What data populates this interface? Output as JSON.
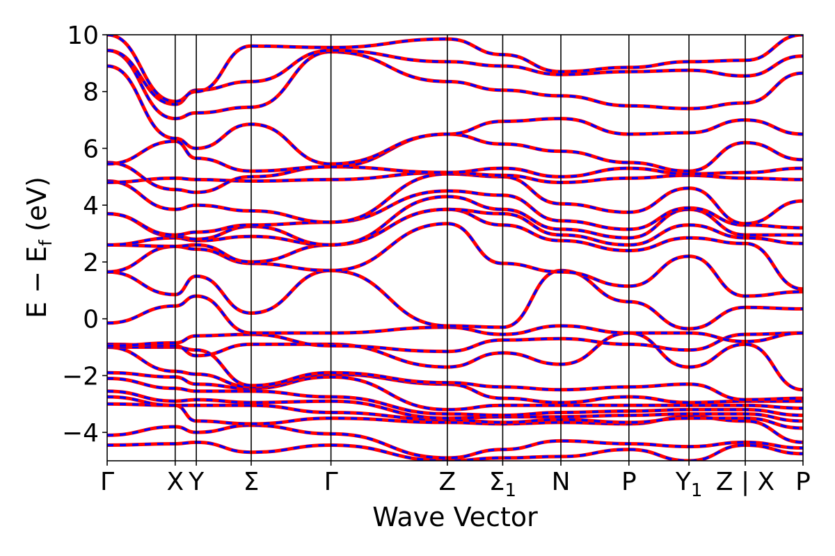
{
  "chart_data": {
    "type": "line",
    "title": "",
    "xlabel": "Wave Vector",
    "ylabel": "E − E_f (eV)",
    "ylabel_main": "E − E",
    "ylabel_sub": "f",
    "ylabel_tail": " (eV)",
    "ylim": [
      -5,
      10
    ],
    "yticks": [
      -4,
      -2,
      0,
      2,
      4,
      6,
      8,
      10
    ],
    "ytick_labels": [
      "−4",
      "−2",
      "0",
      "2",
      "4",
      "6",
      "8",
      "10"
    ],
    "xlim": [
      0,
      12.3
    ],
    "grid": false,
    "legend": "none",
    "colors": {
      "solid": "#ff0000",
      "dashed": "#0000ff"
    },
    "high_symmetry_points": [
      {
        "x": 0.0,
        "label": "Γ",
        "sub": ""
      },
      {
        "x": 1.45,
        "label": "X",
        "sub": ""
      },
      {
        "x": 1.9,
        "label": "Y",
        "sub": ""
      },
      {
        "x": 3.07,
        "label": "Σ",
        "sub": ""
      },
      {
        "x": 4.77,
        "label": "Γ",
        "sub": ""
      },
      {
        "x": 7.25,
        "label": "Z",
        "sub": ""
      },
      {
        "x": 8.43,
        "label": "Σ",
        "sub": "1"
      },
      {
        "x": 9.67,
        "label": "N",
        "sub": ""
      },
      {
        "x": 11.12,
        "label": "P",
        "sub": ""
      },
      {
        "x": 12.4,
        "label": "Y",
        "sub": "1"
      },
      {
        "x": 13.6,
        "label": "Z | X",
        "sub": ""
      },
      {
        "x": 14.83,
        "label": "P",
        "sub": ""
      }
    ],
    "x_nodes": [
      0,
      1.45,
      1.9,
      3.07,
      4.77,
      7.25,
      8.43,
      9.67,
      11.12,
      12.4,
      13.6,
      14.83
    ],
    "series": [
      {
        "values": [
          -4.45,
          -4.4,
          -4.35,
          -4.7,
          -4.45,
          -5.0,
          -4.9,
          -4.85,
          -4.6,
          -5.0,
          -4.45,
          -4.75
        ]
      },
      {
        "values": [
          -4.1,
          -3.8,
          -4.0,
          -3.75,
          -4.05,
          -4.9,
          -4.6,
          -4.3,
          -4.4,
          -4.5,
          -4.35,
          -4.55
        ]
      },
      {
        "values": [
          -3.0,
          -3.05,
          -3.6,
          -3.7,
          -3.5,
          -3.65,
          -3.7,
          -3.65,
          -3.7,
          -3.45,
          -3.6,
          -4.35
        ]
      },
      {
        "values": [
          -2.75,
          -3.05,
          -3.05,
          -3.05,
          -3.3,
          -3.55,
          -3.65,
          -3.55,
          -3.65,
          -3.5,
          -3.5,
          -3.85
        ]
      },
      {
        "values": [
          -2.55,
          -2.9,
          -2.85,
          -2.95,
          -2.9,
          -3.5,
          -3.45,
          -3.45,
          -3.4,
          -3.35,
          -3.35,
          -3.6
        ]
      },
      {
        "values": [
          -2.1,
          -2.45,
          -2.55,
          -2.55,
          -2.75,
          -3.35,
          -3.4,
          -3.3,
          -3.25,
          -3.2,
          -3.2,
          -3.4
        ]
      },
      {
        "values": [
          -1.9,
          -2.05,
          -2.3,
          -2.45,
          -2.05,
          -3.2,
          -3.05,
          -3.05,
          -3.05,
          -3.05,
          -3.05,
          -3.15
        ]
      },
      {
        "values": [
          -1.0,
          -1.85,
          -1.95,
          -2.4,
          -1.95,
          -2.3,
          -2.8,
          -2.95,
          -2.75,
          -2.95,
          -2.9,
          -2.9
        ]
      },
      {
        "values": [
          -1.0,
          -1.0,
          -1.1,
          -2.35,
          -1.9,
          -2.25,
          -2.4,
          -2.5,
          -2.4,
          -2.3,
          -2.85,
          -2.8
        ]
      },
      {
        "values": [
          -0.9,
          -0.95,
          -1.3,
          -0.9,
          -0.9,
          -1.7,
          -1.2,
          -1.6,
          -0.5,
          -1.7,
          -0.9,
          -2.5
        ]
      },
      {
        "values": [
          -0.95,
          -0.85,
          -0.6,
          -0.55,
          -0.95,
          -1.15,
          -0.75,
          -0.7,
          -0.9,
          -1.1,
          -0.55,
          -0.5
        ]
      },
      {
        "values": [
          -0.15,
          0.45,
          0.8,
          -0.5,
          -0.5,
          -0.3,
          -0.55,
          -0.25,
          -0.5,
          -0.5,
          -0.8,
          -0.5
        ]
      },
      {
        "values": [
          1.65,
          0.85,
          1.5,
          0.2,
          1.7,
          -0.25,
          -0.3,
          1.7,
          0.6,
          -0.35,
          0.4,
          0.35
        ]
      },
      {
        "values": [
          1.65,
          2.55,
          2.45,
          1.95,
          1.7,
          3.35,
          1.95,
          1.65,
          1.15,
          2.2,
          0.8,
          0.95
        ]
      },
      {
        "values": [
          2.6,
          2.55,
          2.6,
          2.0,
          2.6,
          3.85,
          3.3,
          2.75,
          2.4,
          2.85,
          2.65,
          1.05
        ]
      },
      {
        "values": [
          2.6,
          2.85,
          2.75,
          2.9,
          2.6,
          3.85,
          3.7,
          2.95,
          2.6,
          3.3,
          2.85,
          2.65
        ]
      },
      {
        "values": [
          3.7,
          2.9,
          2.8,
          3.25,
          2.6,
          4.3,
          3.85,
          3.15,
          2.85,
          3.85,
          2.95,
          2.95
        ]
      },
      {
        "values": [
          3.7,
          2.95,
          3.05,
          3.3,
          3.4,
          4.5,
          4.35,
          3.45,
          3.15,
          3.9,
          3.3,
          3.2
        ]
      },
      {
        "values": [
          4.85,
          3.85,
          4.0,
          3.8,
          3.4,
          5.1,
          5.0,
          4.05,
          3.75,
          4.6,
          3.35,
          4.15
        ]
      },
      {
        "values": [
          4.8,
          4.95,
          4.9,
          4.85,
          4.9,
          5.15,
          5.05,
          4.8,
          4.95,
          5.05,
          4.95,
          4.9
        ]
      },
      {
        "values": [
          5.5,
          4.55,
          4.45,
          5.0,
          5.35,
          5.15,
          5.3,
          5.0,
          5.3,
          5.1,
          5.15,
          5.3
        ]
      },
      {
        "values": [
          5.45,
          6.25,
          5.65,
          5.2,
          5.35,
          6.5,
          6.15,
          5.9,
          5.5,
          5.2,
          6.2,
          5.6
        ]
      },
      {
        "values": [
          8.9,
          6.35,
          6.0,
          6.85,
          5.45,
          6.5,
          6.95,
          7.05,
          6.5,
          6.55,
          7.0,
          6.5
        ]
      },
      {
        "values": [
          9.45,
          7.05,
          7.25,
          7.45,
          9.4,
          8.35,
          8.05,
          7.85,
          7.5,
          7.4,
          7.6,
          8.65
        ]
      },
      {
        "values": [
          9.45,
          7.55,
          8.05,
          8.35,
          9.45,
          9.05,
          8.9,
          8.6,
          8.7,
          8.75,
          8.55,
          9.25
        ]
      },
      {
        "values": [
          10.0,
          7.65,
          8.0,
          9.6,
          9.55,
          9.85,
          9.3,
          8.7,
          8.85,
          9.05,
          9.1,
          10.0
        ]
      }
    ]
  }
}
